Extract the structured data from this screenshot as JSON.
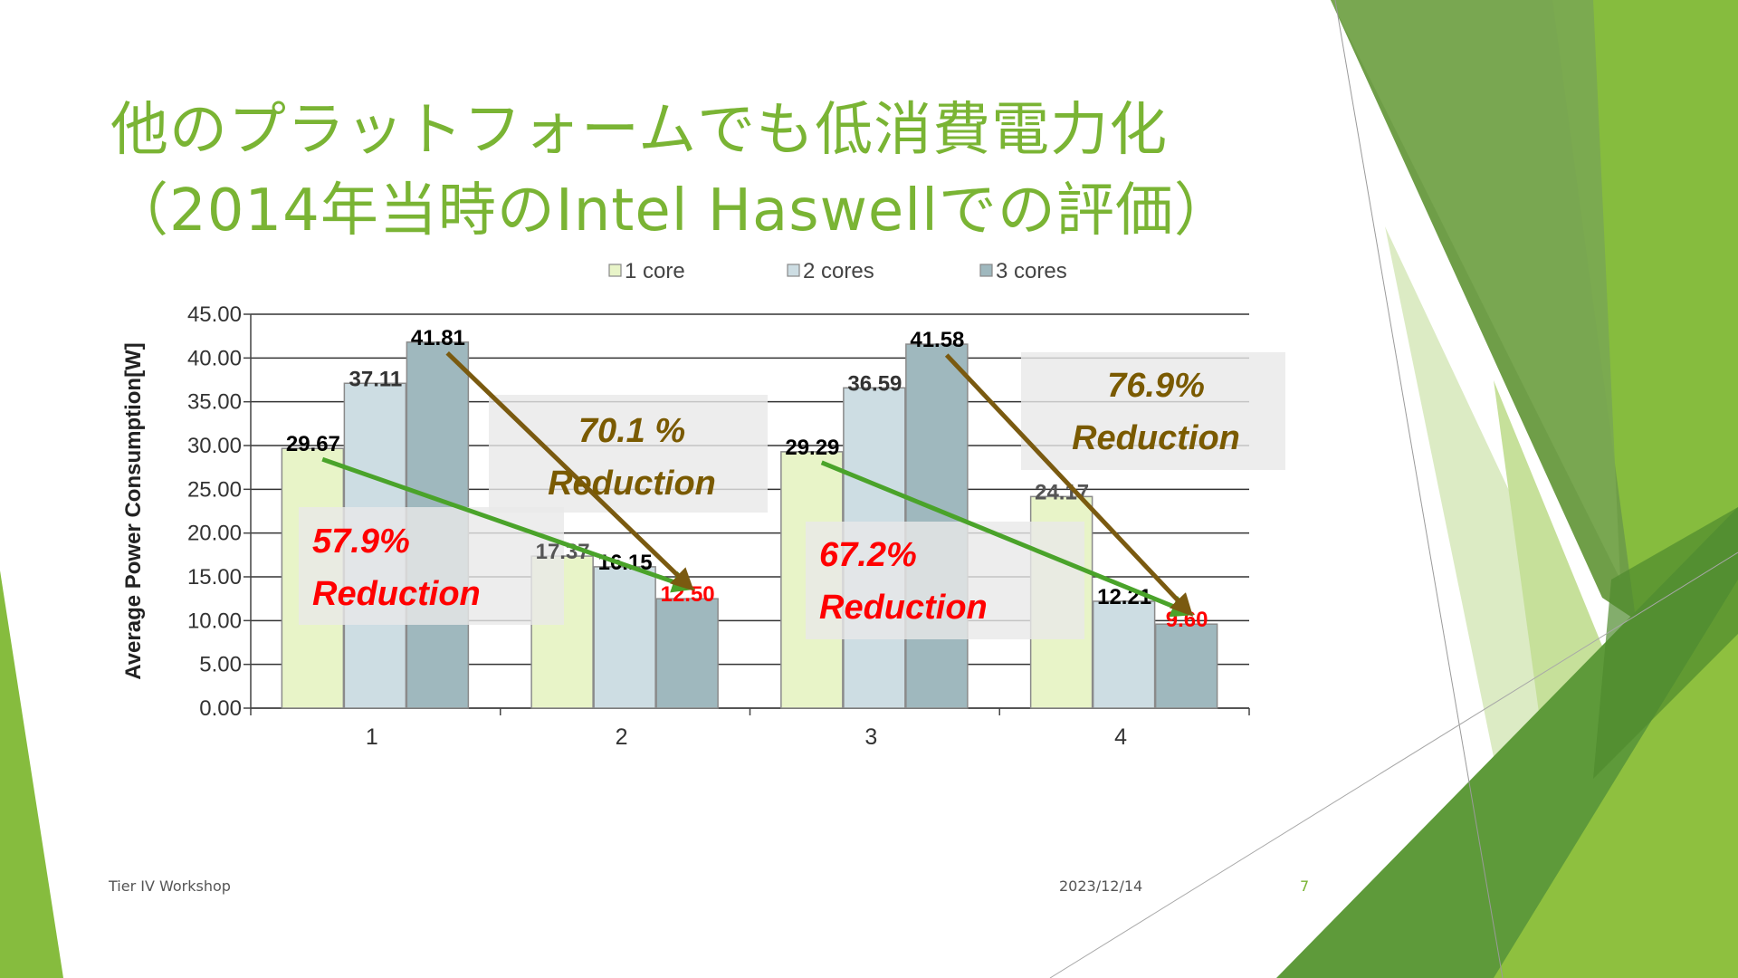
{
  "slide": {
    "title_line1": "他のプラットフォームでも低消費電力化",
    "title_line2": "（2014年当時のIntel Haswellでの評価）",
    "footer_left": "Tier IV Workshop",
    "footer_date": "2023/12/14",
    "page_number": "7"
  },
  "colors": {
    "accent_green": "#7ab434",
    "dark_green": "#5e9a3a",
    "light_green": "#d5e8b0",
    "reduction_red": "#ff0000",
    "reduction_brown": "#7a5a00",
    "arrow_green": "#4aa32a",
    "arrow_brown": "#7a5a10"
  },
  "chart_data": {
    "type": "bar",
    "ylabel": "Average Power Consumption[W]",
    "categories": [
      "1",
      "2",
      "3",
      "4"
    ],
    "ylim": [
      0,
      45
    ],
    "yticks": [
      "0.00",
      "5.00",
      "10.00",
      "15.00",
      "20.00",
      "25.00",
      "30.00",
      "35.00",
      "40.00",
      "45.00"
    ],
    "grid": true,
    "legend_position": "top",
    "series": [
      {
        "name": "1 core",
        "color": "#e8f4c8",
        "values": [
          29.67,
          17.37,
          29.29,
          24.17
        ],
        "labels": [
          "29.67",
          "17.37",
          "29.29",
          "24.17"
        ],
        "label_colors": [
          "#000000",
          "#555555",
          "#000000",
          "#555555"
        ]
      },
      {
        "name": "2 cores",
        "color": "#cddde3",
        "values": [
          37.11,
          16.15,
          36.59,
          12.21
        ],
        "labels": [
          "37.11",
          "16.15",
          "36.59",
          "12.21"
        ],
        "label_colors": [
          "#333333",
          "#000000",
          "#333333",
          "#000000"
        ]
      },
      {
        "name": "3 cores",
        "color": "#9fb8be",
        "values": [
          41.81,
          12.5,
          41.58,
          9.6
        ],
        "labels": [
          "41.81",
          "12.50",
          "41.58",
          "9.60"
        ],
        "label_colors": [
          "#000000",
          "#ff0000",
          "#000000",
          "#ff0000"
        ]
      }
    ],
    "annotations": [
      {
        "pct": "57.9%",
        "word": "Reduction",
        "color": "#ff0000",
        "from": {
          "category": "1",
          "series": "1 core"
        },
        "to": {
          "category": "2",
          "series": "3 cores"
        },
        "arrow_color": "#4aa32a"
      },
      {
        "pct": "70.1 %",
        "word": "Reduction",
        "color": "#7a5a00",
        "from": {
          "category": "1",
          "series": "3 cores"
        },
        "to": {
          "category": "2",
          "series": "3 cores"
        },
        "arrow_color": "#7a5a10"
      },
      {
        "pct": "67.2%",
        "word": "Reduction",
        "color": "#ff0000",
        "from": {
          "category": "3",
          "series": "1 core"
        },
        "to": {
          "category": "4",
          "series": "3 cores"
        },
        "arrow_color": "#4aa32a"
      },
      {
        "pct": "76.9%",
        "word": "Reduction",
        "color": "#7a5a00",
        "from": {
          "category": "3",
          "series": "3 cores"
        },
        "to": {
          "category": "4",
          "series": "3 cores"
        },
        "arrow_color": "#7a5a10"
      }
    ]
  }
}
